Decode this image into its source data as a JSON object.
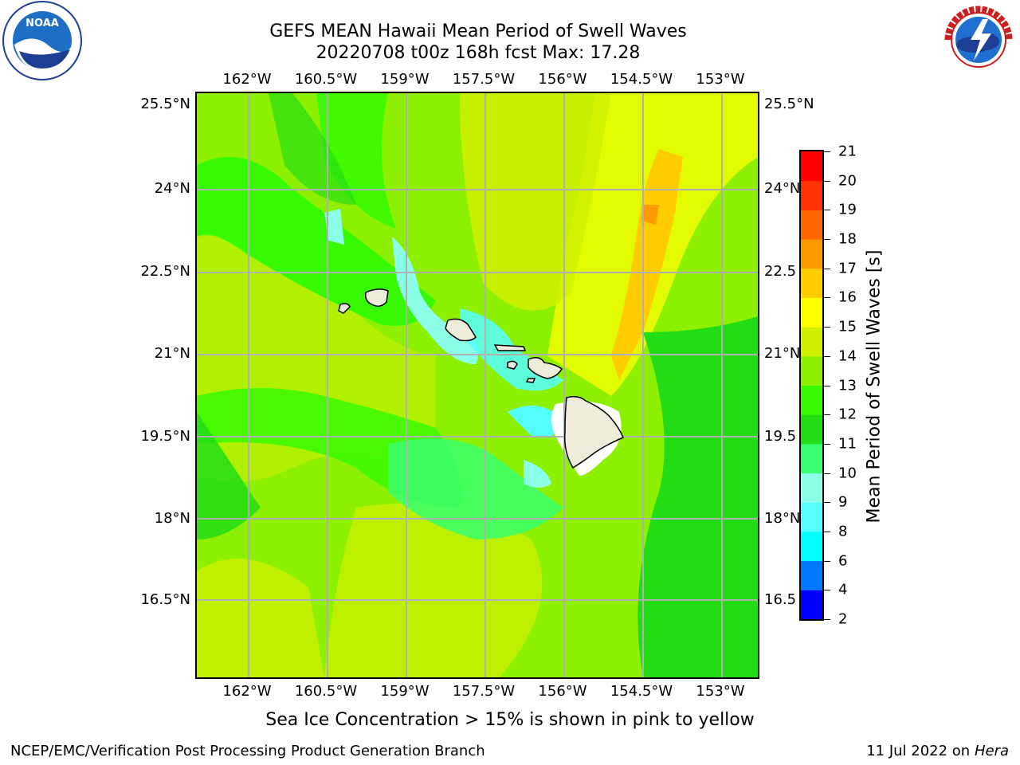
{
  "title": {
    "line1": "GEFS MEAN Hawaii Mean Period of Swell Waves",
    "line2": "20220708 t00z 168h fcst   Max: 17.28"
  },
  "logos": {
    "noaa": {
      "text": "NOAA",
      "ring_text": "NATIONAL OCEANIC AND ATMOSPHERIC ADMINISTRATION · U.S. DEPARTMENT OF COMMERCE"
    },
    "nws": {
      "ring_text": "NATIONAL WEATHER SERVICE"
    }
  },
  "map": {
    "lon_labels": [
      "162°W",
      "160.5°W",
      "159°W",
      "157.5°W",
      "156°W",
      "154.5°W",
      "153°W"
    ],
    "lat_labels_left": [
      "25.5°N",
      "24°N",
      "22.5°N",
      "21°N",
      "19.5°N",
      "18°N",
      "16.5°N"
    ],
    "lat_labels_right": [
      "25.5°N",
      "24°N",
      "22.5",
      "21°N",
      "19.5",
      "18°N",
      "16.5"
    ],
    "background_color": "#8cf000",
    "land_color": "#eeebdb",
    "grid_color": "#b0b0b0"
  },
  "colorbar": {
    "title": "Mean Period of Swell Waves [s]",
    "levels": [
      2,
      4,
      6,
      8,
      9,
      10,
      11,
      12,
      13,
      14,
      15,
      16,
      17,
      18,
      19,
      20,
      21
    ],
    "colors": [
      "#0000ff",
      "#0078ff",
      "#00ffff",
      "#55ffff",
      "#8cffe8",
      "#39ff6e",
      "#22dc16",
      "#38fa00",
      "#8cf000",
      "#d0f000",
      "#ffff00",
      "#ffcc00",
      "#ff9900",
      "#ff6600",
      "#ff3300",
      "#ff0000"
    ]
  },
  "footer": {
    "note": "Sea Ice Concentration > 15% is shown in pink to yellow",
    "branch": "NCEP/EMC/Verification Post Processing Product Generation Branch",
    "date_prefix": "11 Jul 2022 on ",
    "machine": "Hera"
  }
}
